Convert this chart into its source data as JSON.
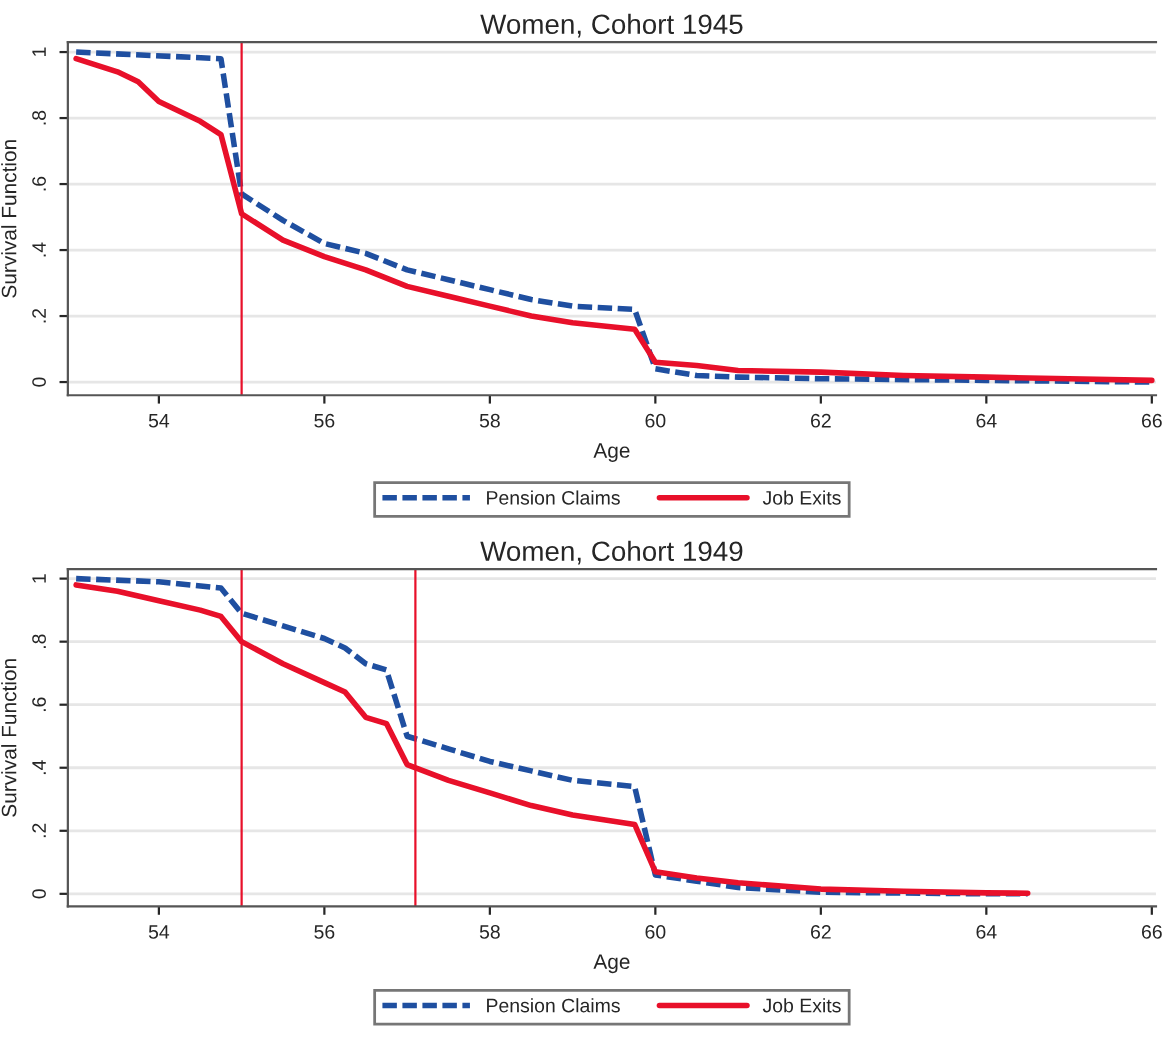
{
  "chart_data": [
    {
      "type": "line",
      "title": "Women, Cohort 1945",
      "xlabel": "Age",
      "ylabel": "Survival Function",
      "xlim": [
        52.9,
        66.05
      ],
      "xticks": [
        54,
        56,
        58,
        60,
        62,
        64,
        66
      ],
      "ylim": [
        -0.04,
        1.03
      ],
      "yticks": [
        {
          "value": 0,
          "label": "0"
        },
        {
          "value": 0.2,
          "label": ".2"
        },
        {
          "value": 0.4,
          "label": ".4"
        },
        {
          "value": 0.6,
          "label": ".6"
        },
        {
          "value": 0.8,
          "label": ".8"
        },
        {
          "value": 1,
          "label": "1"
        }
      ],
      "grid": "y",
      "legend": "bottom",
      "ref_lines": [
        {
          "axis": "x",
          "value": 55,
          "color": "#e8102a"
        }
      ],
      "series": [
        {
          "name": "Pension Claims",
          "color": "#1f4fa0",
          "line_style": "dashed",
          "x": [
            53,
            54.75,
            55,
            55.5,
            56,
            56.5,
            57,
            57.5,
            58,
            58.5,
            59,
            59.75,
            60,
            60.5,
            61,
            62,
            64,
            66
          ],
          "values": [
            1.0,
            0.98,
            0.57,
            0.49,
            0.42,
            0.39,
            0.34,
            0.31,
            0.28,
            0.25,
            0.23,
            0.22,
            0.04,
            0.02,
            0.015,
            0.01,
            0.005,
            0.0
          ]
        },
        {
          "name": "Job Exits",
          "color": "#e8102a",
          "line_style": "solid",
          "x": [
            53,
            53.5,
            53.75,
            54,
            54.5,
            54.75,
            55,
            55.5,
            56,
            56.5,
            57,
            57.5,
            58,
            58.5,
            59,
            59.75,
            60,
            60.5,
            61,
            62,
            63,
            64,
            65,
            66
          ],
          "values": [
            0.98,
            0.94,
            0.91,
            0.85,
            0.79,
            0.75,
            0.51,
            0.43,
            0.38,
            0.34,
            0.29,
            0.26,
            0.23,
            0.2,
            0.18,
            0.16,
            0.06,
            0.05,
            0.035,
            0.03,
            0.02,
            0.015,
            0.01,
            0.005
          ]
        }
      ]
    },
    {
      "type": "line",
      "title": "Women, Cohort 1949",
      "xlabel": "Age",
      "ylabel": "Survival Function",
      "xlim": [
        52.9,
        66.05
      ],
      "xticks": [
        54,
        56,
        58,
        60,
        62,
        64,
        66
      ],
      "ylim": [
        -0.04,
        1.03
      ],
      "yticks": [
        {
          "value": 0,
          "label": "0"
        },
        {
          "value": 0.2,
          "label": ".2"
        },
        {
          "value": 0.4,
          "label": ".4"
        },
        {
          "value": 0.6,
          "label": ".6"
        },
        {
          "value": 0.8,
          "label": ".8"
        },
        {
          "value": 1,
          "label": "1"
        }
      ],
      "grid": "y",
      "legend": "bottom",
      "ref_lines": [
        {
          "axis": "x",
          "value": 55,
          "color": "#e8102a"
        },
        {
          "axis": "x",
          "value": 57.1,
          "color": "#e8102a"
        }
      ],
      "series": [
        {
          "name": "Pension Claims",
          "color": "#1f4fa0",
          "line_style": "dashed",
          "x": [
            53,
            54,
            54.75,
            55,
            55.5,
            56,
            56.25,
            56.5,
            56.75,
            57,
            57.5,
            58,
            58.5,
            59,
            59.75,
            60,
            60.5,
            61,
            62,
            64,
            64.5
          ],
          "values": [
            1.0,
            0.99,
            0.97,
            0.89,
            0.85,
            0.81,
            0.78,
            0.73,
            0.71,
            0.5,
            0.46,
            0.42,
            0.39,
            0.36,
            0.34,
            0.06,
            0.04,
            0.02,
            0.005,
            0.0,
            0.0
          ]
        },
        {
          "name": "Job Exits",
          "color": "#e8102a",
          "line_style": "solid",
          "x": [
            53,
            53.5,
            54,
            54.5,
            54.75,
            55,
            55.5,
            56,
            56.25,
            56.5,
            56.75,
            57,
            57.5,
            58,
            58.5,
            59,
            59.75,
            60,
            60.5,
            61,
            62,
            63,
            64,
            64.5
          ],
          "values": [
            0.98,
            0.96,
            0.93,
            0.9,
            0.88,
            0.8,
            0.73,
            0.67,
            0.64,
            0.56,
            0.54,
            0.41,
            0.36,
            0.32,
            0.28,
            0.25,
            0.22,
            0.07,
            0.05,
            0.035,
            0.015,
            0.008,
            0.003,
            0.002
          ]
        }
      ]
    }
  ]
}
